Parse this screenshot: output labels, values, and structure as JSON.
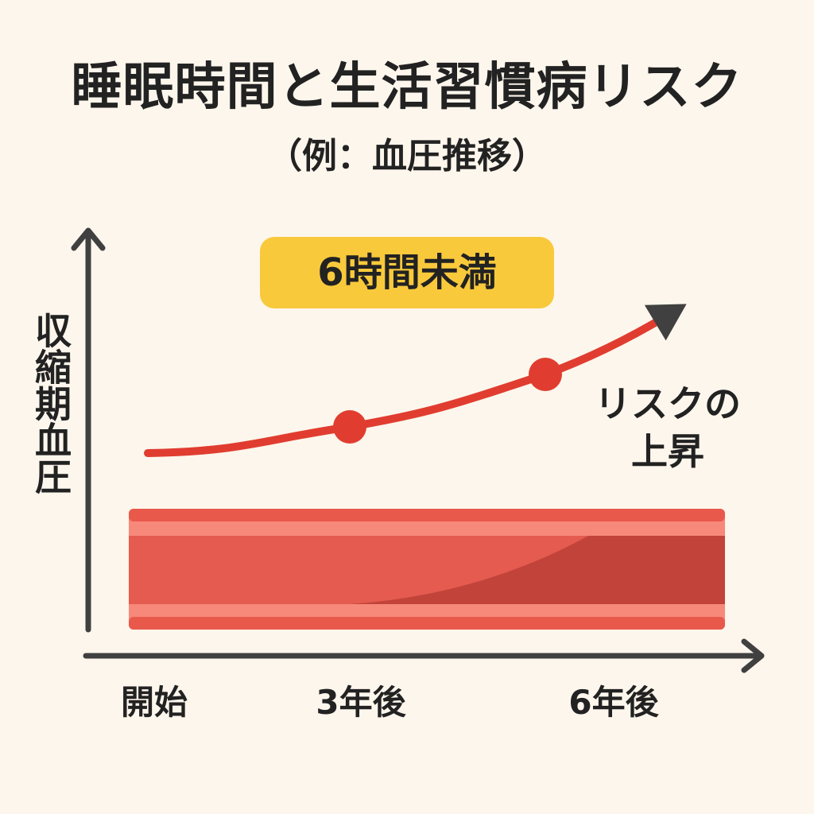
{
  "chart_data": {
    "type": "line",
    "title": "睡眠時間と生活習慣病リスク",
    "subtitle": "（例：血圧推移）",
    "ylabel": "収縮期血圧",
    "xlabel": "",
    "categories": [
      "開始",
      "3年後",
      "6年後"
    ],
    "series": [
      {
        "name": "6時間未満",
        "values": [
          1.0,
          1.6,
          2.8
        ]
      }
    ],
    "badge": "6時間未満",
    "annotation_lines": [
      "リスクの",
      "上昇"
    ],
    "ylim": [
      0,
      5
    ],
    "grid": false,
    "legend": "none",
    "colors": {
      "line": "#e03d30",
      "marker": "#e03d30",
      "badge": "#f9c93c",
      "axis": "#404040",
      "arrowhead": "#404040",
      "vessel_outer": "#f7897a",
      "vessel_inner": "#e55b4f",
      "vessel_plaque": "#c2433a",
      "background": "#fdf6ec"
    }
  }
}
